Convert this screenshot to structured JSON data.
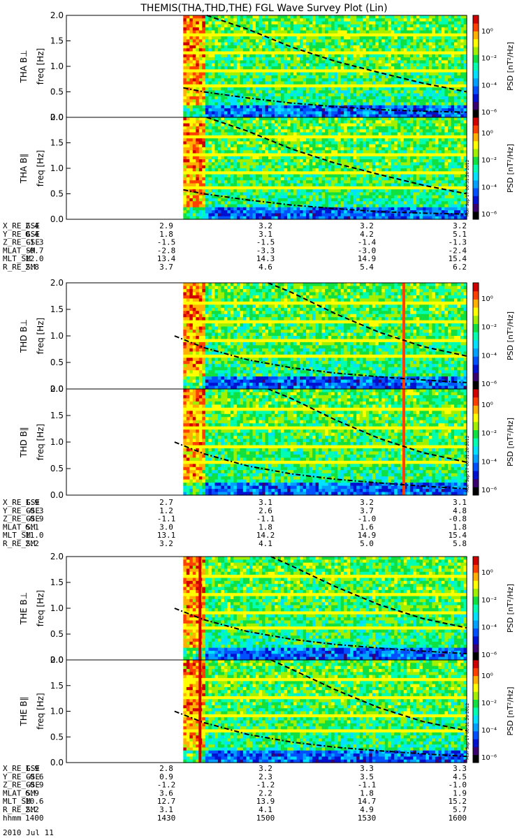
{
  "title": "THEMIS(THA,THD,THE) FGL Wave Survey Plot (Lin)",
  "colors": {
    "palette": [
      "#000000",
      "#3a0070",
      "#0010d0",
      "#0050ff",
      "#00a0ff",
      "#00e0ff",
      "#00ffb0",
      "#10e040",
      "#a0f000",
      "#ffff00",
      "#ffb000",
      "#ff4000",
      "#d00000"
    ],
    "void": "#ffffff",
    "line": "#000000"
  },
  "colorbar": {
    "label": "PSD [nT²/Hz]",
    "ticks": [
      "10⁰",
      "10⁻²",
      "10⁻⁴",
      "10⁻⁶"
    ],
    "stamp": "Mon Sep 17 00:31:20 2012"
  },
  "chart_data": [
    {
      "type": "heatmap",
      "name": "THA B⊥",
      "ylabel": "THA B⊥",
      "yunit": "freq [Hz]",
      "yticks": [
        "0.0",
        "0.5",
        "1.0",
        "1.5",
        "2.0"
      ],
      "ylim": [
        0,
        2.0
      ],
      "xlim": [
        "13:43",
        "16:00"
      ],
      "data_start": "14:23",
      "zlim": [
        "1e-7",
        "1e1"
      ],
      "zscale": "log",
      "curves": [
        {
          "style": "dashed",
          "points": [
            [
              "14:31",
              2.05
            ],
            [
              "14:45",
              1.73
            ],
            [
              "15:00",
              1.38
            ],
            [
              "15:15",
              1.1
            ],
            [
              "15:30",
              0.88
            ],
            [
              "15:45",
              0.67
            ],
            [
              "16:00",
              0.5
            ]
          ]
        },
        {
          "style": "dash-dot",
          "points": [
            [
              "14:23",
              0.58
            ],
            [
              "14:30",
              0.5
            ],
            [
              "14:45",
              0.38
            ],
            [
              "15:00",
              0.28
            ],
            [
              "15:15",
              0.21
            ],
            [
              "15:30",
              0.15
            ],
            [
              "15:45",
              0.12
            ],
            [
              "16:00",
              0.1
            ]
          ]
        }
      ]
    },
    {
      "type": "heatmap",
      "name": "THA B∥",
      "ylabel": "THA B∥",
      "yunit": "freq [Hz]",
      "yticks": [
        "0.0",
        "0.5",
        "1.0",
        "1.5",
        "2.0"
      ],
      "ylim": [
        0,
        2.0
      ],
      "xlim": [
        "13:43",
        "16:00"
      ],
      "data_start": "14:23",
      "zlim": [
        "1e-7",
        "1e1"
      ],
      "zscale": "log",
      "curves": [
        {
          "style": "dashed",
          "points": [
            [
              "14:31",
              2.05
            ],
            [
              "14:45",
              1.73
            ],
            [
              "15:00",
              1.38
            ],
            [
              "15:15",
              1.1
            ],
            [
              "15:30",
              0.88
            ],
            [
              "15:45",
              0.67
            ],
            [
              "16:00",
              0.5
            ]
          ]
        },
        {
          "style": "dash-dot",
          "points": [
            [
              "14:23",
              0.58
            ],
            [
              "14:30",
              0.5
            ],
            [
              "14:45",
              0.38
            ],
            [
              "15:00",
              0.28
            ],
            [
              "15:15",
              0.21
            ],
            [
              "15:30",
              0.15
            ],
            [
              "15:45",
              0.12
            ],
            [
              "16:00",
              0.1
            ]
          ]
        }
      ]
    },
    {
      "type": "heatmap",
      "name": "THD B⊥",
      "ylabel": "THD B⊥",
      "yunit": "freq [Hz]",
      "yticks": [
        "0.0",
        "0.5",
        "1.0",
        "1.5",
        "2.0"
      ],
      "ylim": [
        0,
        2.0
      ],
      "xlim": [
        "13:43",
        "16:00"
      ],
      "data_start": "14:23",
      "zlim": [
        "1e-7",
        "1e1"
      ],
      "zscale": "log",
      "curves": [
        {
          "style": "dashed",
          "points": [
            [
              "14:52",
              2.05
            ],
            [
              "15:00",
              1.82
            ],
            [
              "15:15",
              1.42
            ],
            [
              "15:30",
              1.07
            ],
            [
              "15:45",
              0.8
            ],
            [
              "16:00",
              0.62
            ]
          ]
        },
        {
          "style": "dash-dot",
          "points": [
            [
              "14:20",
              1.0
            ],
            [
              "14:30",
              0.78
            ],
            [
              "14:45",
              0.55
            ],
            [
              "15:00",
              0.4
            ],
            [
              "15:15",
              0.3
            ],
            [
              "15:30",
              0.23
            ],
            [
              "15:45",
              0.17
            ],
            [
              "16:00",
              0.12
            ]
          ]
        }
      ]
    },
    {
      "type": "heatmap",
      "name": "THD B∥",
      "ylabel": "THD B∥",
      "yunit": "freq [Hz]",
      "yticks": [
        "0.0",
        "0.5",
        "1.0",
        "1.5",
        "2.0"
      ],
      "ylim": [
        0,
        2.0
      ],
      "xlim": [
        "13:43",
        "16:00"
      ],
      "data_start": "14:23",
      "zlim": [
        "1e-7",
        "1e1"
      ],
      "zscale": "log",
      "curves": [
        {
          "style": "dashed",
          "points": [
            [
              "14:52",
              2.05
            ],
            [
              "15:00",
              1.82
            ],
            [
              "15:15",
              1.42
            ],
            [
              "15:30",
              1.07
            ],
            [
              "15:45",
              0.8
            ],
            [
              "16:00",
              0.62
            ]
          ]
        },
        {
          "style": "dash-dot",
          "points": [
            [
              "14:20",
              1.0
            ],
            [
              "14:30",
              0.78
            ],
            [
              "14:45",
              0.55
            ],
            [
              "15:00",
              0.4
            ],
            [
              "15:15",
              0.3
            ],
            [
              "15:30",
              0.23
            ],
            [
              "15:45",
              0.17
            ],
            [
              "16:00",
              0.12
            ]
          ]
        }
      ]
    },
    {
      "type": "heatmap",
      "name": "THE B⊥",
      "ylabel": "THE B⊥",
      "yunit": "freq [Hz]",
      "yticks": [
        "0.0",
        "0.5",
        "1.0",
        "1.5",
        "2.0"
      ],
      "ylim": [
        0,
        2.0
      ],
      "xlim": [
        "13:43",
        "16:00"
      ],
      "data_start": "14:23",
      "zlim": [
        "1e-7",
        "1e1"
      ],
      "zscale": "log",
      "curves": [
        {
          "style": "dashed",
          "points": [
            [
              "14:53",
              2.05
            ],
            [
              "15:00",
              1.82
            ],
            [
              "15:15",
              1.42
            ],
            [
              "15:30",
              1.07
            ],
            [
              "15:45",
              0.8
            ],
            [
              "16:00",
              0.62
            ]
          ]
        },
        {
          "style": "dash-dot",
          "points": [
            [
              "14:20",
              1.0
            ],
            [
              "14:30",
              0.78
            ],
            [
              "14:45",
              0.55
            ],
            [
              "15:00",
              0.4
            ],
            [
              "15:15",
              0.3
            ],
            [
              "15:30",
              0.23
            ],
            [
              "15:45",
              0.17
            ],
            [
              "16:00",
              0.12
            ]
          ]
        }
      ]
    },
    {
      "type": "heatmap",
      "name": "THE B∥",
      "ylabel": "THE B∥",
      "yunit": "freq [Hz]",
      "yticks": [
        "0.0",
        "0.5",
        "1.0",
        "1.5",
        "2.0"
      ],
      "ylim": [
        0,
        2.0
      ],
      "xlim": [
        "13:43",
        "16:00"
      ],
      "data_start": "14:23",
      "zlim": [
        "1e-7",
        "1e1"
      ],
      "zscale": "log",
      "curves": [
        {
          "style": "dashed",
          "points": [
            [
              "14:53",
              2.05
            ],
            [
              "15:00",
              1.82
            ],
            [
              "15:15",
              1.42
            ],
            [
              "15:30",
              1.07
            ],
            [
              "15:45",
              0.8
            ],
            [
              "16:00",
              0.62
            ]
          ]
        },
        {
          "style": "dash-dot",
          "points": [
            [
              "14:20",
              1.0
            ],
            [
              "14:30",
              0.78
            ],
            [
              "14:45",
              0.55
            ],
            [
              "15:00",
              0.4
            ],
            [
              "15:15",
              0.3
            ],
            [
              "15:30",
              0.23
            ],
            [
              "15:45",
              0.17
            ],
            [
              "16:00",
              0.12
            ]
          ]
        }
      ]
    }
  ],
  "ephemeris": [
    {
      "probe": "THA",
      "rows": [
        {
          "label": "X_RE_GSE",
          "values": [
            "2.4",
            "2.9",
            "3.2",
            "3.2",
            "3.2"
          ]
        },
        {
          "label": "Y_RE_GSE",
          "values": [
            "0.4",
            "1.8",
            "3.1",
            "4.2",
            "5.1"
          ]
        },
        {
          "label": "Z_RE_GSE",
          "values": [
            "-1.3",
            "-1.5",
            "-1.5",
            "-1.4",
            "-1.3"
          ]
        },
        {
          "label": "MLAT_SM",
          "values": [
            "-0.7",
            "-2.8",
            "-3.3",
            "-3.0",
            "-2.4"
          ]
        },
        {
          "label": "MLT_SM",
          "values": [
            "12.0",
            "13.4",
            "14.3",
            "14.9",
            "15.4"
          ]
        },
        {
          "label": "R_RE_SM",
          "values": [
            "2.8",
            "3.7",
            "4.6",
            "5.4",
            "6.2"
          ]
        }
      ]
    },
    {
      "probe": "THD",
      "rows": [
        {
          "label": "X_RE_GSE",
          "values": [
            "1.9",
            "2.7",
            "3.1",
            "3.2",
            "3.1"
          ]
        },
        {
          "label": "Y_RE_GSE",
          "values": [
            "-0.3",
            "1.2",
            "2.6",
            "3.7",
            "4.8"
          ]
        },
        {
          "label": "Z_RE_GSE",
          "values": [
            "-0.9",
            "-1.1",
            "-1.1",
            "-1.0",
            "-0.8"
          ]
        },
        {
          "label": "MLAT_SM",
          "values": [
            "6.1",
            "3.0",
            "1.8",
            "1.6",
            "1.8"
          ]
        },
        {
          "label": "MLT_SM",
          "values": [
            "11.0",
            "13.1",
            "14.2",
            "14.9",
            "15.4"
          ]
        },
        {
          "label": "R_RE_SM",
          "values": [
            "2.2",
            "3.2",
            "4.1",
            "5.0",
            "5.8"
          ]
        }
      ]
    },
    {
      "probe": "THE",
      "rows": [
        {
          "label": "X_RE_GSE",
          "values": [
            "1.9",
            "2.8",
            "3.2",
            "3.3",
            "3.3"
          ]
        },
        {
          "label": "Y_RE_GSE",
          "values": [
            "-0.6",
            "0.9",
            "2.3",
            "3.5",
            "4.5"
          ]
        },
        {
          "label": "Z_RE_GSE",
          "values": [
            "-0.9",
            "-1.2",
            "-1.2",
            "-1.1",
            "-1.0"
          ]
        },
        {
          "label": "MLAT_SM",
          "values": [
            "6.9",
            "3.6",
            "2.2",
            "1.8",
            "1.9"
          ]
        },
        {
          "label": "MLT_SM",
          "values": [
            "10.6",
            "12.7",
            "13.9",
            "14.7",
            "15.2"
          ]
        },
        {
          "label": "R_RE_SM",
          "values": [
            "2.2",
            "3.1",
            "4.1",
            "4.9",
            "5.7"
          ]
        },
        {
          "label": "hhmm",
          "values": [
            "1400",
            "1430",
            "1500",
            "1530",
            "1600"
          ]
        }
      ]
    }
  ],
  "date": "2010 Jul 11"
}
